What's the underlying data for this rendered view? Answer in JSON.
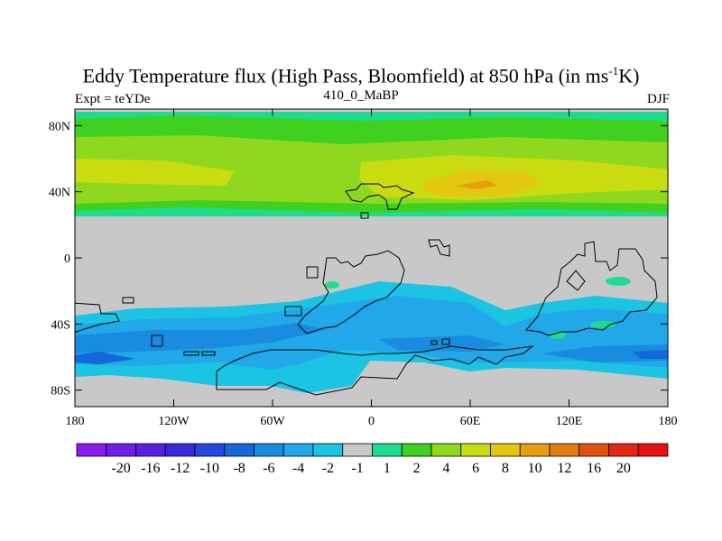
{
  "header": {
    "title_main": "Eddy Temperature flux (High Pass, Bloomfield) at 850 hPa (in ms",
    "title_sup": "-1",
    "title_end": "K)",
    "left": "Expt = teYDe",
    "center": "410_0_MaBP",
    "right": "DJF"
  },
  "map": {
    "lon_range": [
      -180,
      180
    ],
    "lat_range": [
      -90,
      90
    ],
    "y_ticks": [
      {
        "lat": 80,
        "label": "80N"
      },
      {
        "lat": 40,
        "label": "40N"
      },
      {
        "lat": 0,
        "label": "0"
      },
      {
        "lat": -40,
        "label": "40S"
      },
      {
        "lat": -80,
        "label": "80S"
      }
    ],
    "x_ticks": [
      {
        "lon": -180,
        "label": "180"
      },
      {
        "lon": -120,
        "label": "120W"
      },
      {
        "lon": -60,
        "label": "60W"
      },
      {
        "lon": 0,
        "label": "0"
      },
      {
        "lon": 60,
        "label": "60E"
      },
      {
        "lon": 120,
        "label": "120E"
      },
      {
        "lon": 180,
        "label": "180"
      }
    ],
    "background_color": "#c8c8c8",
    "coastline_color": "#000000"
  },
  "colorbar": {
    "colors": [
      "#8a1cf0",
      "#6f1ee8",
      "#5a20e0",
      "#3c28dc",
      "#2448e0",
      "#1468d8",
      "#1a8ce0",
      "#20a8e8",
      "#1cc4e4",
      "#c8c8c8",
      "#1cdc90",
      "#40d020",
      "#90d820",
      "#c8dc10",
      "#e4c810",
      "#e4a010",
      "#e07c10",
      "#e05010",
      "#e42810",
      "#e81010"
    ],
    "labels": [
      "-20",
      "-16",
      "-12",
      "-10",
      "-8",
      "-6",
      "-4",
      "-2",
      "-1",
      "1",
      "2",
      "4",
      "6",
      "8",
      "10",
      "12",
      "16",
      "20"
    ]
  }
}
